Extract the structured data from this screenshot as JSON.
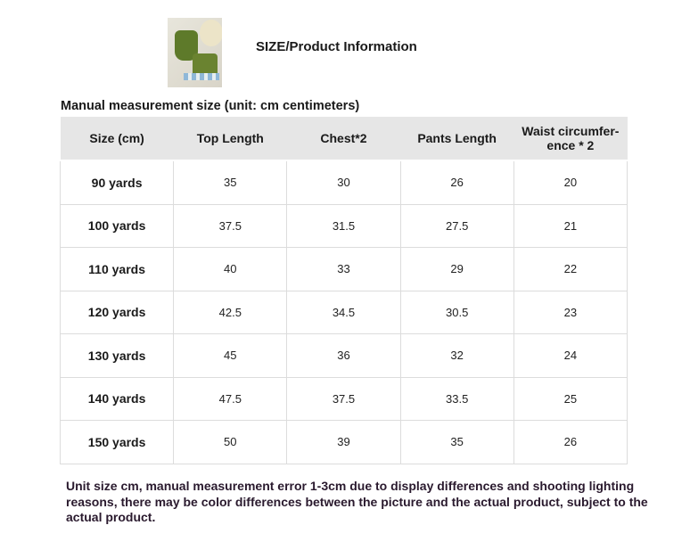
{
  "header": {
    "title": "SIZE/Product Information",
    "image_alt": "green outfit product photo"
  },
  "subtitle": "Manual measurement size (unit: cm centimeters)",
  "table": {
    "columns": [
      "Size (cm)",
      "Top Length",
      "Chest*2",
      "Pants Length",
      "Waist circumfer- ence * 2"
    ],
    "rows": [
      [
        "90 yards",
        "35",
        "30",
        "26",
        "20"
      ],
      [
        "100 yards",
        "37.5",
        "31.5",
        "27.5",
        "21"
      ],
      [
        "110 yards",
        "40",
        "33",
        "29",
        "22"
      ],
      [
        "120 yards",
        "42.5",
        "34.5",
        "30.5",
        "23"
      ],
      [
        "130 yards",
        "45",
        "36",
        "32",
        "24"
      ],
      [
        "140 yards",
        "47.5",
        "37.5",
        "33.5",
        "25"
      ],
      [
        "150 yards",
        "50",
        "39",
        "35",
        "26"
      ]
    ]
  },
  "note": "Unit size cm, manual measurement error 1-3cm due to display differences and shooting lighting reasons, there may be color differences between the picture and the actual product, subject to the actual product."
}
